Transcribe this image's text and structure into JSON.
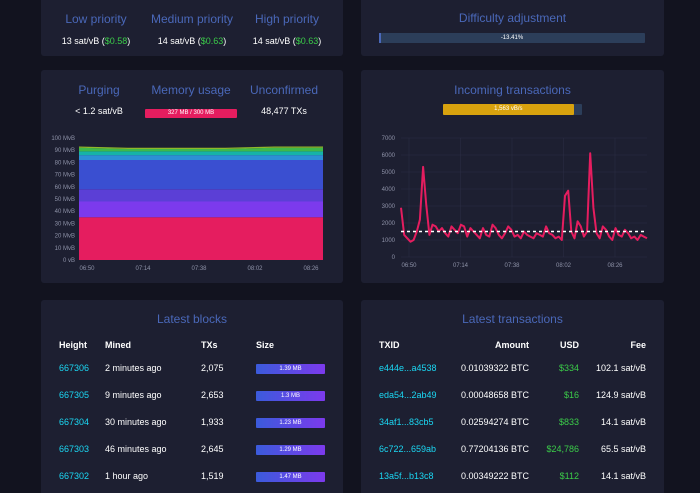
{
  "fees": {
    "low": {
      "label": "Low priority",
      "rate": "13 sat/vB",
      "usd": "$0.58"
    },
    "medium": {
      "label": "Medium priority",
      "rate": "14 sat/vB",
      "usd": "$0.63"
    },
    "high": {
      "label": "High priority",
      "rate": "14 sat/vB",
      "usd": "$0.63"
    }
  },
  "difficulty": {
    "title": "Difficulty adjustment",
    "value": "-13.41%"
  },
  "mempool": {
    "purging_label": "Purging",
    "purging_value": "< 1.2 sat/vB",
    "memory_label": "Memory usage",
    "memory_value": "327 MB / 300 MB",
    "unconfirmed_label": "Unconfirmed",
    "unconfirmed_value": "48,477 TXs"
  },
  "incoming": {
    "title": "Incoming transactions",
    "bar_value": "1,563 vB/s",
    "bar_fraction": 0.94
  },
  "chart_data": [
    {
      "type": "area",
      "title": "",
      "y_ticks": [
        "0 vB",
        "10 MvB",
        "20 MvB",
        "30 MvB",
        "40 MvB",
        "50 MvB",
        "60 MvB",
        "70 MvB",
        "80 MvB",
        "90 MvB",
        "100 MvB"
      ],
      "x_ticks": [
        "06:50",
        "07:14",
        "07:38",
        "08:02",
        "08:26"
      ],
      "ylim": [
        0,
        100
      ],
      "series": [
        {
          "color": "#e51d5f",
          "values": [
            35,
            35,
            35,
            35,
            35,
            35
          ]
        },
        {
          "color": "#7c3aed",
          "values": [
            13,
            13,
            13,
            13,
            13,
            13
          ]
        },
        {
          "color": "#5b3fd6",
          "values": [
            10,
            10,
            10,
            10,
            10,
            10
          ]
        },
        {
          "color": "#3a4fd1",
          "values": [
            24,
            24,
            24,
            24,
            24,
            24
          ]
        },
        {
          "color": "#2d8fd6",
          "values": [
            4,
            4,
            4,
            4,
            4,
            4
          ]
        },
        {
          "color": "#16b3a8",
          "values": [
            3,
            3,
            3,
            3,
            3,
            3
          ]
        },
        {
          "color": "#3fb84a",
          "values": [
            3,
            2,
            2,
            2,
            3,
            3
          ]
        },
        {
          "color": "#8fb82a",
          "values": [
            1,
            1,
            1,
            1,
            1,
            1
          ]
        }
      ]
    },
    {
      "type": "line",
      "title": "",
      "y_ticks": [
        "0",
        "1000",
        "2000",
        "3000",
        "4000",
        "5000",
        "6000",
        "7000"
      ],
      "x_ticks": [
        "06:50",
        "07:14",
        "07:38",
        "08:02",
        "08:26"
      ],
      "ylim": [
        0,
        7000
      ],
      "limit_line": 1500,
      "values": [
        2900,
        1300,
        1100,
        900,
        1000,
        1500,
        2200,
        5300,
        3100,
        1300,
        1900,
        1800,
        1500,
        1700,
        1400,
        1200,
        1800,
        1600,
        1400,
        1900,
        1800,
        1200,
        1700,
        1500,
        1300,
        1100,
        1700,
        1300,
        1200,
        1900,
        1700,
        1300,
        1100,
        1400,
        1800,
        1600,
        1200,
        1300,
        1100,
        1500,
        1300,
        1200,
        1100,
        1400,
        1300,
        1200,
        1800,
        1400,
        1300,
        1100,
        1200,
        1000,
        3600,
        3900,
        1500,
        1100,
        2100,
        1800,
        1200,
        1500,
        6100,
        2900,
        1400,
        1100,
        1800,
        1600,
        1200,
        1000,
        1700,
        1300,
        1200,
        1600,
        1400,
        1100,
        1200,
        1000,
        1300,
        1200,
        1100
      ]
    }
  ],
  "blocks": {
    "title": "Latest blocks",
    "headers": [
      "Height",
      "Mined",
      "TXs",
      "Size"
    ],
    "rows": [
      {
        "height": "667306",
        "mined": "2 minutes ago",
        "txs": "2,075",
        "size": "1.39 MB"
      },
      {
        "height": "667305",
        "mined": "9 minutes ago",
        "txs": "2,653",
        "size": "1.3 MB"
      },
      {
        "height": "667304",
        "mined": "30 minutes ago",
        "txs": "1,933",
        "size": "1.23 MB"
      },
      {
        "height": "667303",
        "mined": "46 minutes ago",
        "txs": "2,645",
        "size": "1.29 MB"
      },
      {
        "height": "667302",
        "mined": "1 hour ago",
        "txs": "1,519",
        "size": "1.47 MB"
      }
    ]
  },
  "transactions": {
    "title": "Latest transactions",
    "headers": [
      "TXID",
      "Amount",
      "USD",
      "Fee"
    ],
    "rows": [
      {
        "txid": "e444e...a4538",
        "amount": "0.01039322 BTC",
        "usd": "$334",
        "fee": "102.1 sat/vB"
      },
      {
        "txid": "eda54...2ab49",
        "amount": "0.00048658 BTC",
        "usd": "$16",
        "fee": "124.9 sat/vB"
      },
      {
        "txid": "34af1...83cb5",
        "amount": "0.02594274 BTC",
        "usd": "$833",
        "fee": "14.1 sat/vB"
      },
      {
        "txid": "6c722...659ab",
        "amount": "0.77204136 BTC",
        "usd": "$24,786",
        "fee": "65.5 sat/vB"
      },
      {
        "txid": "13a5f...b13c8",
        "amount": "0.00349222 BTC",
        "usd": "$112",
        "fee": "14.1 sat/vB"
      }
    ]
  }
}
